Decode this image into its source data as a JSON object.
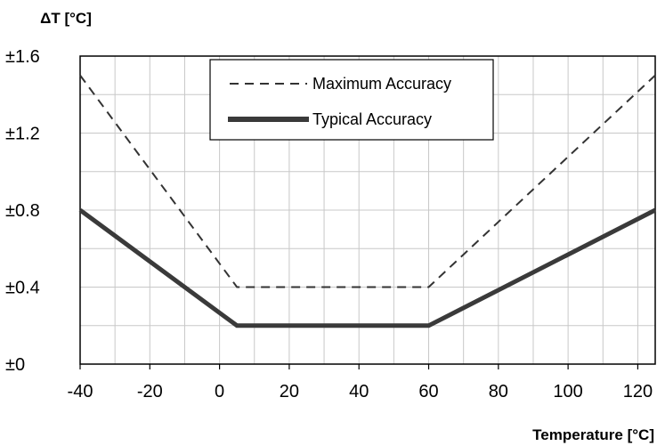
{
  "chart_data": {
    "type": "line",
    "ylabel": "ΔT [°C]",
    "xlabel": "Temperature [°C]",
    "xlim": [
      -40,
      125
    ],
    "ylim": [
      0,
      1.6
    ],
    "x_ticks": [
      -40,
      -20,
      0,
      20,
      40,
      60,
      80,
      100,
      120
    ],
    "x_tick_labels": [
      "-40",
      "-20",
      "0",
      "20",
      "40",
      "60",
      "80",
      "100",
      "120"
    ],
    "y_ticks": [
      0,
      0.4,
      0.8,
      1.2,
      1.6
    ],
    "y_tick_labels": [
      "±0",
      "±0.4",
      "±0.8",
      "±1.2",
      "±1.6"
    ],
    "x_gridlines": [
      -40,
      -30,
      -20,
      -10,
      0,
      10,
      20,
      30,
      40,
      50,
      60,
      70,
      80,
      90,
      100,
      110,
      120
    ],
    "y_gridlines": [
      0,
      0.2,
      0.4,
      0.6,
      0.8,
      1.0,
      1.2,
      1.4,
      1.6
    ],
    "grid": true,
    "legend_position": "top-center",
    "series": [
      {
        "name": "Maximum Accuracy",
        "style": "dashed",
        "color": "#333333",
        "points": [
          [
            -40,
            1.5
          ],
          [
            5,
            0.4
          ],
          [
            60,
            0.4
          ],
          [
            125,
            1.5
          ]
        ]
      },
      {
        "name": "Typical Accuracy",
        "style": "solid-thick",
        "color": "#3a3a3a",
        "points": [
          [
            -40,
            0.8
          ],
          [
            5,
            0.2
          ],
          [
            60,
            0.2
          ],
          [
            125,
            0.8
          ]
        ]
      }
    ]
  }
}
